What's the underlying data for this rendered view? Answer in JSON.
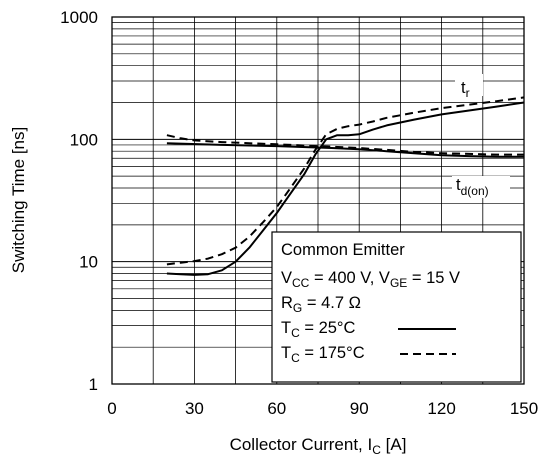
{
  "chart_data": {
    "type": "line",
    "xlabel": "Collector Current, I",
    "xlabel_sub": "C",
    "xlabel_unit": " [A]",
    "ylabel": "Switching Time [ns]",
    "xlim": [
      0,
      150
    ],
    "ylim": [
      1,
      1000
    ],
    "y_scale": "log",
    "grid": true,
    "x_ticks": [
      0,
      30,
      60,
      90,
      120,
      150
    ],
    "y_ticks": [
      {
        "value": 1,
        "label": "1"
      },
      {
        "value": 10,
        "label": "10"
      },
      {
        "value": 100,
        "label": "100"
      },
      {
        "value": 1000,
        "label": "1000"
      }
    ],
    "series": [
      {
        "curve": "t_r",
        "condition": "T_C = 25°C",
        "style": "solid",
        "x": [
          20,
          25,
          30,
          35,
          40,
          45,
          50,
          55,
          60,
          65,
          70,
          74,
          78,
          82,
          86,
          90,
          95,
          100,
          110,
          120,
          130,
          140,
          150
        ],
        "y": [
          8,
          7.9,
          7.8,
          7.9,
          8.5,
          10,
          13,
          18,
          25,
          36,
          52,
          75,
          100,
          108,
          108,
          110,
          120,
          130,
          145,
          160,
          172,
          185,
          200
        ]
      },
      {
        "curve": "t_r",
        "condition": "T_C = 175°C",
        "style": "dashed",
        "x": [
          20,
          25,
          30,
          35,
          40,
          45,
          50,
          55,
          60,
          65,
          70,
          74,
          78,
          82,
          86,
          90,
          95,
          100,
          110,
          120,
          130,
          140,
          150
        ],
        "y": [
          9.5,
          9.8,
          10.1,
          10.6,
          11.5,
          13,
          16,
          21,
          28,
          40,
          58,
          82,
          110,
          122,
          128,
          132,
          140,
          150,
          165,
          180,
          192,
          205,
          220
        ]
      },
      {
        "curve": "t_d(on)",
        "condition": "T_C = 25°C",
        "style": "solid",
        "x": [
          20,
          40,
          60,
          80,
          90,
          100,
          110,
          120,
          130,
          140,
          150
        ],
        "y": [
          93,
          90,
          88,
          85,
          83,
          80,
          77,
          74,
          73,
          72,
          72
        ]
      },
      {
        "curve": "t_d(on)",
        "condition": "T_C = 175°C",
        "style": "dashed",
        "x": [
          20,
          25,
          30,
          40,
          50,
          60,
          70,
          80,
          90,
          100,
          110,
          120,
          130,
          140,
          150
        ],
        "y": [
          108,
          102,
          98,
          95,
          93,
          91,
          89,
          87,
          85,
          82,
          79,
          77,
          76,
          75,
          75
        ]
      }
    ],
    "curve_labels": [
      {
        "main": "t",
        "sub": "r"
      },
      {
        "main": "t",
        "sub": "d(on)"
      }
    ],
    "legend": {
      "placement": "bottom-right",
      "line1": "Common Emitter",
      "line2": {
        "a": "V",
        "a_sub": "CC",
        "b": " = 400 V, V",
        "b_sub": "GE",
        "c": " = 15 V"
      },
      "line3": {
        "a": "R",
        "a_sub": "G",
        "b": " = 4.7 Ω"
      },
      "entries": [
        {
          "a": "T",
          "a_sub": "C",
          "b": " = 25°C",
          "style": "solid"
        },
        {
          "a": "T",
          "a_sub": "C",
          "b": " = 175°C",
          "style": "dashed"
        }
      ]
    }
  }
}
